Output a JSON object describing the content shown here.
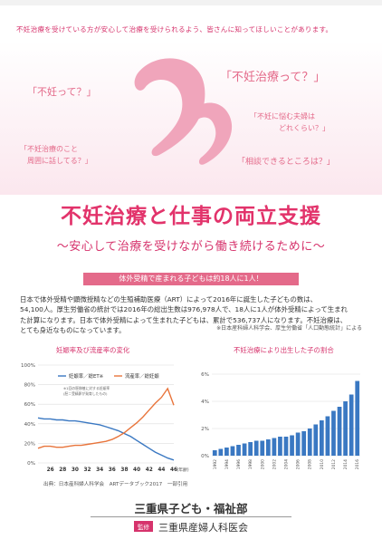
{
  "intro": "不妊治療を受けている方が安心して治療を受けられるよう、皆さんに知ってほしいことがあります。",
  "bubbles": {
    "b1": "「不妊って？」",
    "b2": "「不妊治療って？」",
    "b3": "「不妊に悩む夫婦は",
    "b3b": "どれくらい？」",
    "b4": "「不妊治療のこと",
    "b4b": "周囲に話してる？」",
    "b5": "「相談できるところは？」"
  },
  "colors": {
    "accent": "#e2336b",
    "heart": "#f0a5bb",
    "banner": "#e46a8a",
    "series_blue": "#3a78c2",
    "series_orange": "#e8743b"
  },
  "title": "不妊治療と仕事の両立支援",
  "subtitle": "〜安心して治療を受けながら働き続けるために〜",
  "banner": "体外受精で産まれる子どもは約18人に1人！",
  "body": [
    "日本で体外受精や顕微授精などの生殖補助医療（ART）によって2016年に誕生した子どもの数は、",
    "54,100人。厚生労働省の統計では2016年の総出生数は976,978人で、18人に1人が体外受精によって生まれ",
    "た計算になります。日本で体外受精によって生まれた子どもは、累計で536,737人になります。不妊治療は、",
    "とても身近なものになっています。"
  ],
  "source": "※日本産科婦人科学会、厚生労働省「人口動態統計」による",
  "chart_left_title": "妊娠率及び流産率の変化",
  "chart_right_title": "不妊治療により出生した子の割合",
  "chart_note": "出典：日本産科婦人科学会　ARTデータブック2017　一部引用",
  "chart_data": [
    {
      "type": "line",
      "title": "妊娠率及び流産率の変化",
      "x": [
        24,
        25,
        26,
        27,
        28,
        29,
        30,
        31,
        32,
        33,
        34,
        35,
        36,
        37,
        38,
        39,
        40,
        41,
        42,
        43,
        44,
        45,
        46
      ],
      "x_ticks": [
        "26",
        "28",
        "30",
        "32",
        "34",
        "36",
        "38",
        "40",
        "42",
        "44",
        "46"
      ],
      "x_unit": "(年齢)",
      "y_ticks": [
        "0%",
        "20%",
        "40%",
        "60%",
        "80%",
        "100%"
      ],
      "ylim": [
        0,
        100
      ],
      "legend": [
        "妊娠率／総ET※",
        "流産率／総妊娠"
      ],
      "legend_note": [
        "※1回の胚移植に対する妊娠率",
        "(胚＝受精卵が発育したもの)"
      ],
      "series": [
        {
          "name": "妊娠率／総ET※",
          "values": [
            46,
            45,
            45,
            44,
            44,
            43,
            43,
            42,
            41,
            40,
            39,
            37,
            35,
            33,
            30,
            27,
            23,
            19,
            15,
            11,
            8,
            5,
            3
          ]
        },
        {
          "name": "流産率／総妊娠",
          "values": [
            15,
            17,
            17,
            16,
            16,
            17,
            18,
            18,
            19,
            20,
            21,
            22,
            24,
            27,
            31,
            36,
            41,
            47,
            54,
            61,
            67,
            76,
            59
          ]
        }
      ]
    },
    {
      "type": "bar",
      "title": "不妊治療により出生した子の割合",
      "categories": [
        "1992",
        "1993",
        "1994",
        "1995",
        "1996",
        "1997",
        "1998",
        "1999",
        "2000",
        "2001",
        "2002",
        "2003",
        "2004",
        "2005",
        "2006",
        "2007",
        "2008",
        "2009",
        "2010",
        "2011",
        "2012",
        "2013",
        "2014",
        "2015",
        "2016"
      ],
      "values": [
        0.4,
        0.5,
        0.6,
        0.7,
        0.8,
        0.9,
        1.0,
        1.1,
        1.1,
        1.2,
        1.3,
        1.4,
        1.4,
        1.5,
        1.7,
        1.8,
        2.0,
        2.3,
        2.6,
        2.9,
        3.3,
        3.6,
        4.0,
        4.5,
        5.5
      ],
      "y_ticks": [
        "0%",
        "2%",
        "4%",
        "6%"
      ],
      "ylim": [
        0,
        6
      ]
    }
  ],
  "org": "三重県子ども・福祉部",
  "supervisor_label": "監修",
  "supervisor": "三重県産婦人科医会"
}
